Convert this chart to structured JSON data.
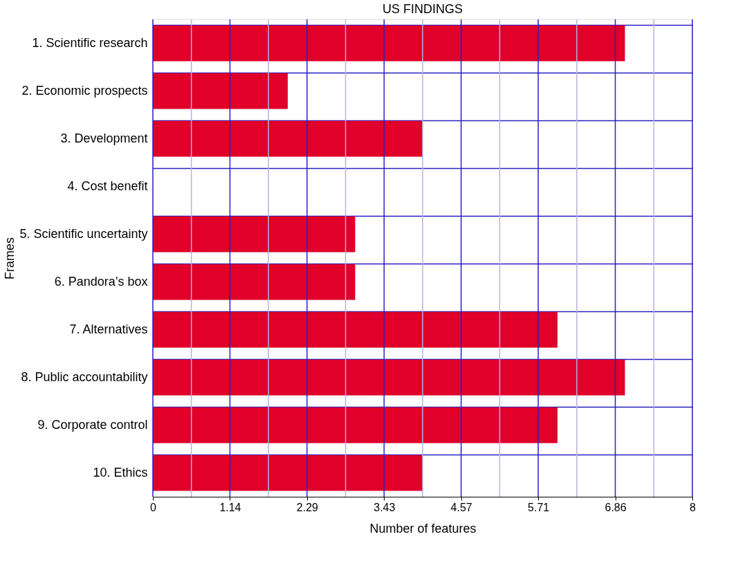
{
  "chart_data": {
    "type": "bar",
    "orientation": "horizontal",
    "title": "US FINDINGS",
    "xlabel": "Number of features",
    "ylabel": "Frames",
    "categories": [
      "1. Scientific research",
      "2. Economic prospects",
      "3. Development",
      "4. Cost benefit",
      "5. Scientific uncertainty",
      "6. Pandora’s box",
      "7. Alternatives",
      "8. Public accountability",
      "9. Corporate control",
      "10. Ethics"
    ],
    "values": [
      7,
      2,
      4,
      0,
      3,
      3,
      6,
      7,
      6,
      4
    ],
    "color": "#e0002a",
    "xlim": [
      0,
      8
    ],
    "xticks": [
      0,
      {
        "value": 0.571,
        "label": null
      },
      {
        "value": 1.143,
        "label": "1.14"
      },
      {
        "value": 1.714,
        "label": null
      },
      {
        "value": 2.286,
        "label": "2.29"
      },
      {
        "value": 2.857,
        "label": null
      },
      {
        "value": 3.429,
        "label": "3.43"
      },
      {
        "value": 4.0,
        "label": null
      },
      {
        "value": 4.571,
        "label": "4.57"
      },
      {
        "value": 5.143,
        "label": null
      },
      {
        "value": 5.714,
        "label": "5.71"
      },
      {
        "value": 6.286,
        "label": null
      },
      {
        "value": 6.857,
        "label": "6.86"
      },
      {
        "value": 7.429,
        "label": null
      },
      8
    ],
    "grid": true
  }
}
